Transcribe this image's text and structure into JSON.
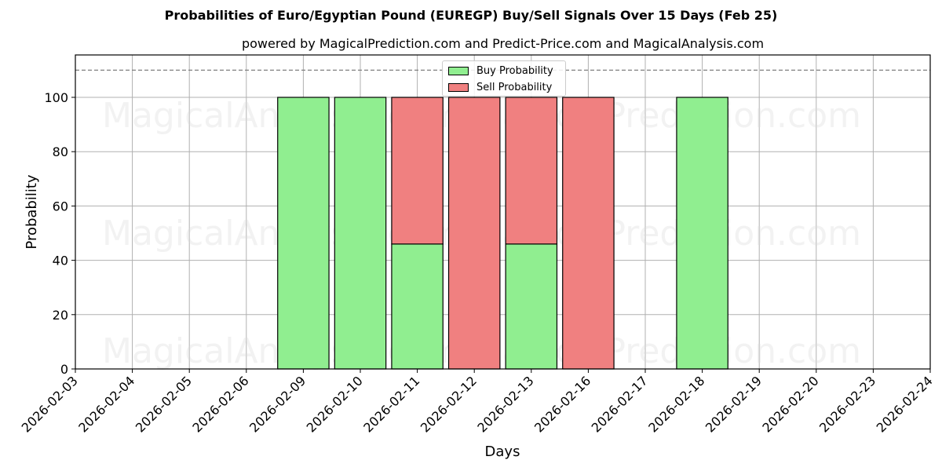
{
  "title": "Probabilities of Euro/Egyptian Pound (EUREGP) Buy/Sell Signals Over 15 Days (Feb 25)",
  "subtitle": "powered by MagicalPrediction.com and Predict-Price.com and MagicalAnalysis.com",
  "watermarks": [
    "MagicalAnalysis.com",
    "MagicalPrediction.com"
  ],
  "legend": {
    "buy_label": "Buy Probability",
    "sell_label": "Sell Probability"
  },
  "colors": {
    "buy": "#90ee90",
    "sell": "#f08080",
    "grid": "#b0b0b0",
    "reference_line": "#808080"
  },
  "chart_data": {
    "type": "bar",
    "stacked": true,
    "title": "Probabilities of Euro/Egyptian Pound (EUREGP) Buy/Sell Signals Over 15 Days (Feb 25)",
    "subtitle": "powered by MagicalPrediction.com and Predict-Price.com and MagicalAnalysis.com",
    "xlabel": "Days",
    "ylabel": "Probability",
    "ylim": [
      0,
      115
    ],
    "yticks": [
      0,
      20,
      40,
      60,
      80,
      100
    ],
    "grid": true,
    "legend_position": "upper center",
    "reference_line": {
      "y": 110,
      "style": "dashed"
    },
    "categories": [
      "2026-02-03",
      "2026-02-04",
      "2026-02-05",
      "2026-02-06",
      "2026-02-09",
      "2026-02-10",
      "2026-02-11",
      "2026-02-12",
      "2026-02-13",
      "2026-02-16",
      "2026-02-17",
      "2026-02-18",
      "2026-02-19",
      "2026-02-20",
      "2026-02-23",
      "2026-02-24"
    ],
    "series": [
      {
        "name": "Buy Probability",
        "color": "#90ee90",
        "values": [
          0,
          0,
          0,
          0,
          100,
          100,
          46,
          0,
          46,
          0,
          0,
          100,
          0,
          0,
          0,
          0
        ]
      },
      {
        "name": "Sell Probability",
        "color": "#f08080",
        "values": [
          0,
          0,
          0,
          0,
          0,
          0,
          54,
          100,
          54,
          100,
          0,
          0,
          0,
          0,
          0,
          0
        ]
      }
    ]
  }
}
